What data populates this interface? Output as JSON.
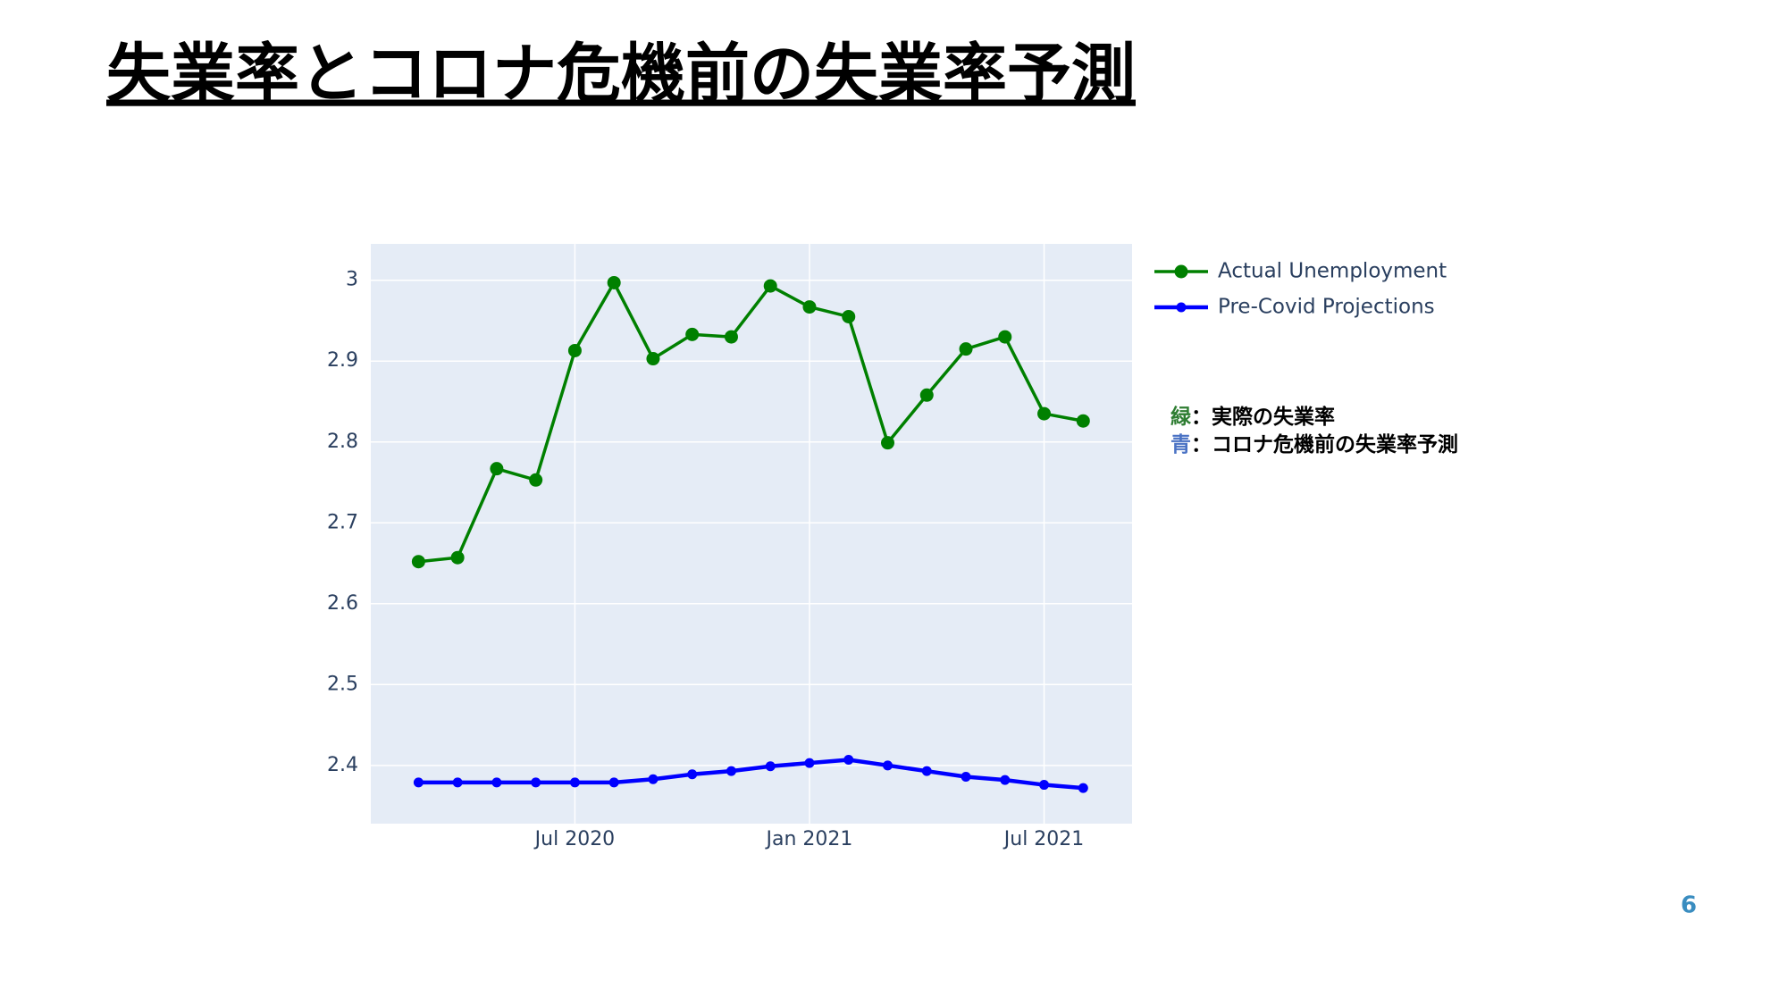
{
  "title": "失業率とコロナ危機前の失業率予測",
  "page_number": "6",
  "notes": [
    {
      "key": "緑",
      "text": "：実際の失業率",
      "color": "#2e7d32"
    },
    {
      "key": "青",
      "text": "：コロナ危機前の失業率予測",
      "color": "#4a72c4"
    }
  ],
  "chart_data": {
    "type": "line",
    "x": [
      "2020-03",
      "2020-04",
      "2020-05",
      "2020-06",
      "2020-07",
      "2020-08",
      "2020-09",
      "2020-10",
      "2020-11",
      "2020-12",
      "2021-01",
      "2021-02",
      "2021-03",
      "2021-04",
      "2021-05",
      "2021-06",
      "2021-07",
      "2021-08"
    ],
    "series": [
      {
        "name": "Actual Unemployment",
        "color": "#008000",
        "values": [
          2.652,
          2.657,
          2.767,
          2.753,
          2.913,
          2.997,
          2.903,
          2.933,
          2.93,
          2.993,
          2.967,
          2.955,
          2.799,
          2.858,
          2.915,
          2.93,
          2.835,
          2.826
        ]
      },
      {
        "name": "Pre-Covid Projections",
        "color": "#0000ff",
        "values": [
          2.379,
          2.379,
          2.379,
          2.379,
          2.379,
          2.379,
          2.383,
          2.389,
          2.393,
          2.399,
          2.403,
          2.407,
          2.4,
          2.393,
          2.386,
          2.382,
          2.376,
          2.372
        ]
      }
    ],
    "ylim": [
      2.328,
      3.045
    ],
    "yticks": [
      2.4,
      2.5,
      2.6,
      2.7,
      2.8,
      2.9,
      3
    ],
    "xticks": [
      {
        "value": "2020-07",
        "label": "Jul 2020"
      },
      {
        "value": "2021-01",
        "label": "Jan 2021"
      },
      {
        "value": "2021-07",
        "label": "Jul 2021"
      }
    ],
    "grid": true,
    "legend": "outside-right"
  }
}
